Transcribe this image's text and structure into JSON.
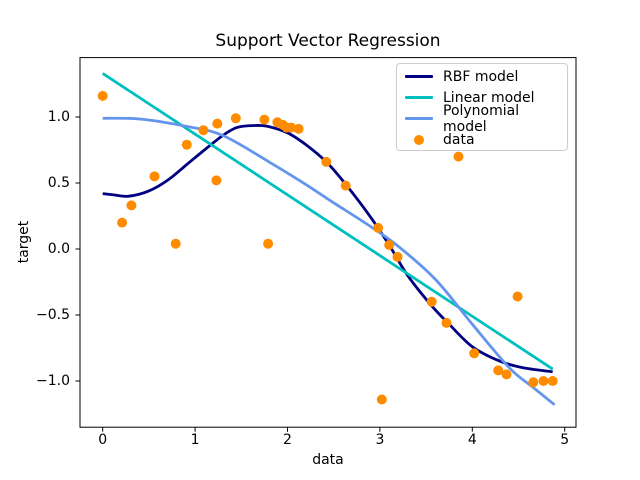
{
  "title": "Support Vector Regression",
  "x_label": "data",
  "y_label": "target",
  "legend": {
    "position": "upper right",
    "entries": [
      {
        "label": "RBF model",
        "color": "#000080",
        "swatch": "line"
      },
      {
        "label": "Linear model",
        "color": "#00bfbf",
        "swatch": "line"
      },
      {
        "label": "Polynomial model",
        "color": "#6495ed",
        "swatch": "line"
      },
      {
        "label": "data",
        "color": "#ff8c00",
        "swatch": "dot"
      }
    ]
  },
  "chart_data": {
    "type": "scatter",
    "title": "Support Vector Regression",
    "xlabel": "data",
    "ylabel": "target",
    "xlim": [
      -0.246,
      5.122
    ],
    "ylim": [
      -1.35,
      1.45
    ],
    "grid": false,
    "legend_position": "upper right",
    "x_ticks": [
      0,
      1,
      2,
      3,
      4,
      5
    ],
    "y_ticks": [
      1.0,
      0.5,
      0.0,
      -0.5,
      -1.0
    ],
    "x_tick_labels": [
      "0",
      "1",
      "2",
      "3",
      "4",
      "5"
    ],
    "y_tick_labels": [
      "1.0",
      "0.5",
      "0.0",
      "−0.5",
      "−1.0"
    ],
    "series": [
      {
        "name": "RBF model",
        "color": "#000080",
        "line_width": 2.8,
        "points": [
          [
            0.0,
            0.42
          ],
          [
            0.12,
            0.41
          ],
          [
            0.28,
            0.4
          ],
          [
            0.5,
            0.44
          ],
          [
            0.7,
            0.52
          ],
          [
            0.91,
            0.64
          ],
          [
            1.1,
            0.75
          ],
          [
            1.3,
            0.86
          ],
          [
            1.45,
            0.92
          ],
          [
            1.62,
            0.935
          ],
          [
            1.78,
            0.93
          ],
          [
            2.0,
            0.88
          ],
          [
            2.2,
            0.79
          ],
          [
            2.42,
            0.66
          ],
          [
            2.63,
            0.49
          ],
          [
            2.9,
            0.24
          ],
          [
            3.1,
            0.03
          ],
          [
            3.3,
            -0.2
          ],
          [
            3.56,
            -0.43
          ],
          [
            3.75,
            -0.57
          ],
          [
            4.0,
            -0.74
          ],
          [
            4.3,
            -0.85
          ],
          [
            4.55,
            -0.9
          ],
          [
            4.87,
            -0.93
          ]
        ]
      },
      {
        "name": "Linear model",
        "color": "#00bfbf",
        "line_width": 2.8,
        "points": [
          [
            0.0,
            1.33
          ],
          [
            4.87,
            -0.91
          ]
        ]
      },
      {
        "name": "Polynomial model",
        "color": "#6495ed",
        "line_width": 2.8,
        "points": [
          [
            0.0,
            0.99
          ],
          [
            0.4,
            0.985
          ],
          [
            0.9,
            0.93
          ],
          [
            1.3,
            0.86
          ],
          [
            1.8,
            0.66
          ],
          [
            2.15,
            0.51
          ],
          [
            2.5,
            0.35
          ],
          [
            2.9,
            0.17
          ],
          [
            3.2,
            0.02
          ],
          [
            3.6,
            -0.23
          ],
          [
            4.0,
            -0.57
          ],
          [
            4.4,
            -0.9
          ],
          [
            4.66,
            -1.05
          ],
          [
            4.89,
            -1.18
          ]
        ]
      }
    ],
    "scatter": {
      "name": "data",
      "color": "#ff8c00",
      "marker_radius": 5,
      "points": [
        [
          0.0,
          1.16
        ],
        [
          0.21,
          0.2
        ],
        [
          0.31,
          0.33
        ],
        [
          0.56,
          0.55
        ],
        [
          0.79,
          0.04
        ],
        [
          0.91,
          0.79
        ],
        [
          1.09,
          0.9
        ],
        [
          1.24,
          0.95
        ],
        [
          1.23,
          0.52
        ],
        [
          1.44,
          0.99
        ],
        [
          1.75,
          0.98
        ],
        [
          1.79,
          0.04
        ],
        [
          1.89,
          0.96
        ],
        [
          1.95,
          0.94
        ],
        [
          1.99,
          0.92
        ],
        [
          2.04,
          0.92
        ],
        [
          2.12,
          0.91
        ],
        [
          2.42,
          0.66
        ],
        [
          2.63,
          0.48
        ],
        [
          2.98,
          0.16
        ],
        [
          3.02,
          -1.14
        ],
        [
          3.1,
          0.03
        ],
        [
          3.19,
          -0.06
        ],
        [
          3.56,
          -0.4
        ],
        [
          3.72,
          -0.56
        ],
        [
          3.85,
          0.7
        ],
        [
          4.02,
          -0.79
        ],
        [
          4.28,
          -0.92
        ],
        [
          4.37,
          -0.95
        ],
        [
          4.49,
          -0.36
        ],
        [
          4.66,
          -1.01
        ],
        [
          4.77,
          -1.0
        ],
        [
          4.87,
          -1.0
        ]
      ]
    }
  }
}
